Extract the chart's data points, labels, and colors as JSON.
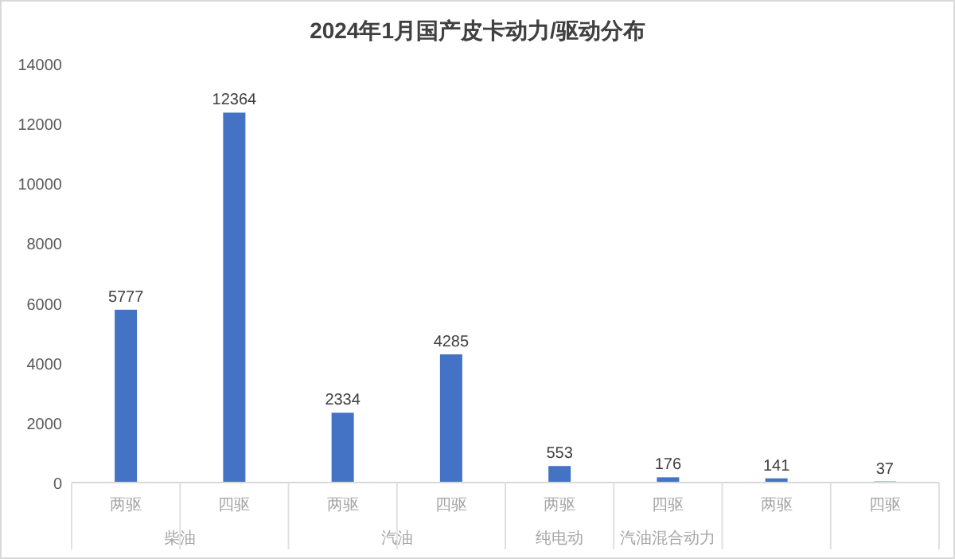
{
  "chart_data": {
    "type": "bar",
    "title": "2024年1月国产皮卡动力/驱动分布",
    "categories": [
      "两驱",
      "四驱",
      "两驱",
      "四驱",
      "两驱",
      "四驱",
      "两驱",
      "四驱"
    ],
    "values": [
      5777,
      12364,
      2334,
      4285,
      553,
      176,
      141,
      37
    ],
    "color": "#4472c4",
    "ylim": [
      0,
      14000
    ],
    "yticks": [
      0,
      2000,
      4000,
      6000,
      8000,
      10000,
      12000,
      14000
    ],
    "data_labels": true,
    "grid": false,
    "annotations": [
      "柴油",
      "汽油",
      "纯电动",
      "汽油混合动力"
    ]
  }
}
